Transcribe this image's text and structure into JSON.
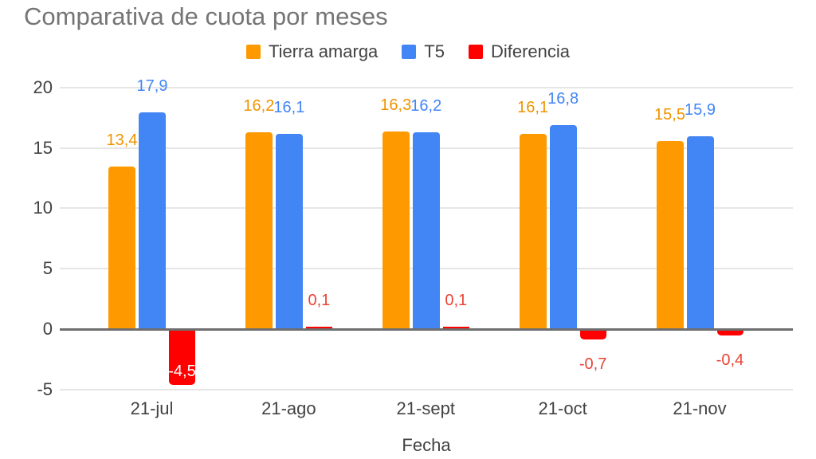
{
  "title": "Comparativa de cuota por meses",
  "colors": {
    "background": "#FFFFFF",
    "title_text": "#757575",
    "axis_text": "#424242",
    "grid": "#E6E6E6",
    "baseline": "#6E6E6E",
    "orange": "#FF9900",
    "blue": "#4285F4",
    "red": "#FF0000",
    "red_label": "#EA4335",
    "inside_label": "#FFFFFF"
  },
  "chart_data": {
    "type": "bar",
    "title": "Comparativa de cuota por meses",
    "xlabel": "Fecha",
    "ylabel": "",
    "categories": [
      "21-jul",
      "21-ago",
      "21-sept",
      "21-oct",
      "21-nov"
    ],
    "series": [
      {
        "name": "Tierra amarga",
        "color": "#FF9900",
        "label_color": "#F09300",
        "values": [
          13.4,
          16.2,
          16.3,
          16.1,
          15.5
        ],
        "labels": [
          "13,4",
          "16,2",
          "16,3",
          "16,1",
          "15,5"
        ]
      },
      {
        "name": "T5",
        "color": "#4285F4",
        "label_color": "#4285F4",
        "values": [
          17.9,
          16.1,
          16.2,
          16.8,
          15.9
        ],
        "labels": [
          "17,9",
          "16,1",
          "16,2",
          "16,8",
          "15,9"
        ]
      },
      {
        "name": "Diferencia",
        "color": "#FF0000",
        "label_color": "#EA4335",
        "values": [
          -4.5,
          0.1,
          0.1,
          -0.7,
          -0.4
        ],
        "labels": [
          "-4,5",
          "0,1",
          "0,1",
          "-0,7",
          "-0,4"
        ]
      }
    ],
    "yticks": [
      20,
      15,
      10,
      5,
      0,
      -5
    ],
    "ylim": [
      -5,
      21.5
    ],
    "grid": true,
    "legend_position": "top"
  }
}
